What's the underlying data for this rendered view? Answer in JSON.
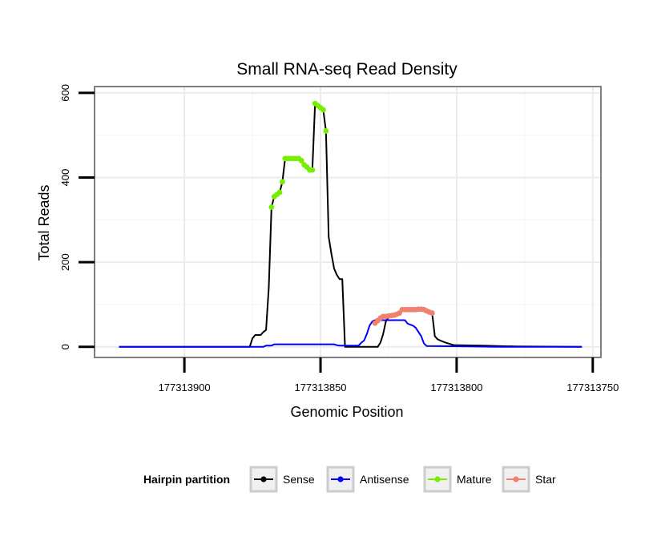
{
  "chart_data": {
    "type": "line",
    "title": "Small RNA-seq Read Density",
    "xlabel": "Genomic Position",
    "ylabel": "Total Reads",
    "x_reversed": true,
    "xlim": [
      177313933,
      177313747
    ],
    "ylim": [
      -25,
      615
    ],
    "x_ticks": [
      177313900,
      177313850,
      177313800,
      177313750
    ],
    "x_tick_labels": [
      "177313900",
      "177313850",
      "177313800",
      "177313750"
    ],
    "y_ticks": [
      0,
      200,
      400,
      600
    ],
    "y_tick_labels": [
      "0",
      "200",
      "400",
      "600"
    ],
    "grid": true,
    "legend": {
      "title": "Hairpin partition",
      "position": "bottom",
      "entries": [
        "Sense",
        "Antisense",
        "Mature",
        "Star"
      ]
    },
    "series": [
      {
        "name": "Sense",
        "color": "#000000",
        "kind": "line",
        "points": [
          [
            177313924,
            0
          ],
          [
            177313876,
            0
          ],
          [
            177313875,
            20
          ],
          [
            177313874,
            28
          ],
          [
            177313872,
            28
          ],
          [
            177313871,
            35
          ],
          [
            177313870,
            40
          ],
          [
            177313869,
            140
          ],
          [
            177313868,
            330
          ],
          [
            177313867,
            355
          ],
          [
            177313866,
            360
          ],
          [
            177313865,
            365
          ],
          [
            177313864,
            390
          ],
          [
            177313863,
            445
          ],
          [
            177313862,
            445
          ],
          [
            177313858,
            445
          ],
          [
            177313857,
            440
          ],
          [
            177313856,
            430
          ],
          [
            177313855,
            425
          ],
          [
            177313854,
            418
          ],
          [
            177313853,
            418
          ],
          [
            177313852,
            575
          ],
          [
            177313851,
            570
          ],
          [
            177313850,
            565
          ],
          [
            177313849,
            560
          ],
          [
            177313848,
            510
          ],
          [
            177313847,
            260
          ],
          [
            177313846,
            220
          ],
          [
            177313845,
            185
          ],
          [
            177313844,
            170
          ],
          [
            177313843,
            160
          ],
          [
            177313842,
            160
          ],
          [
            177313841,
            0
          ],
          [
            177313829,
            0
          ],
          [
            177313828,
            10
          ],
          [
            177313827,
            30
          ],
          [
            177313826,
            60
          ],
          [
            177313825,
            70
          ],
          [
            177313824,
            72
          ],
          [
            177313823,
            75
          ],
          [
            177313822,
            77
          ],
          [
            177313821,
            80
          ],
          [
            177313820,
            88
          ],
          [
            177313812,
            88
          ],
          [
            177313811,
            85
          ],
          [
            177313810,
            82
          ],
          [
            177313809,
            80
          ],
          [
            177313808,
            25
          ],
          [
            177313807,
            18
          ],
          [
            177313806,
            15
          ],
          [
            177313804,
            10
          ],
          [
            177313803,
            8
          ],
          [
            177313801,
            4
          ],
          [
            177313790,
            3
          ],
          [
            177313785,
            2
          ],
          [
            177313778,
            1
          ],
          [
            177313754,
            0
          ]
        ]
      },
      {
        "name": "Antisense",
        "color": "#0000ff",
        "kind": "line",
        "points": [
          [
            177313924,
            0
          ],
          [
            177313871,
            0
          ],
          [
            177313870,
            3
          ],
          [
            177313868,
            3
          ],
          [
            177313867,
            6
          ],
          [
            177313845,
            6
          ],
          [
            177313844,
            4
          ],
          [
            177313843,
            3
          ],
          [
            177313836,
            3
          ],
          [
            177313835,
            10
          ],
          [
            177313834,
            15
          ],
          [
            177313833,
            30
          ],
          [
            177313832,
            50
          ],
          [
            177313831,
            60
          ],
          [
            177313830,
            63
          ],
          [
            177313819,
            63
          ],
          [
            177313818,
            55
          ],
          [
            177313816,
            50
          ],
          [
            177313815,
            45
          ],
          [
            177313814,
            35
          ],
          [
            177313813,
            25
          ],
          [
            177313812,
            8
          ],
          [
            177313811,
            2
          ],
          [
            177313795,
            1
          ],
          [
            177313785,
            0
          ],
          [
            177313754,
            0
          ]
        ]
      },
      {
        "name": "Mature",
        "color": "#76ee00",
        "kind": "points",
        "points": [
          [
            177313868,
            330
          ],
          [
            177313867,
            355
          ],
          [
            177313866,
            360
          ],
          [
            177313865,
            365
          ],
          [
            177313864,
            390
          ],
          [
            177313863,
            445
          ],
          [
            177313862,
            445
          ],
          [
            177313861,
            445
          ],
          [
            177313860,
            445
          ],
          [
            177313859,
            445
          ],
          [
            177313858,
            445
          ],
          [
            177313857,
            440
          ],
          [
            177313856,
            430
          ],
          [
            177313855,
            425
          ],
          [
            177313854,
            418
          ],
          [
            177313853,
            418
          ],
          [
            177313852,
            575
          ],
          [
            177313851,
            570
          ],
          [
            177313850,
            565
          ],
          [
            177313849,
            560
          ],
          [
            177313848,
            510
          ]
        ]
      },
      {
        "name": "Star",
        "color": "#f08070",
        "kind": "points",
        "points": [
          [
            177313830,
            56
          ],
          [
            177313829,
            62
          ],
          [
            177313828,
            68
          ],
          [
            177313827,
            72
          ],
          [
            177313826,
            72
          ],
          [
            177313825,
            73
          ],
          [
            177313824,
            74
          ],
          [
            177313823,
            75
          ],
          [
            177313822,
            77
          ],
          [
            177313821,
            80
          ],
          [
            177313820,
            88
          ],
          [
            177313819,
            88
          ],
          [
            177313818,
            88
          ],
          [
            177313817,
            88
          ],
          [
            177313816,
            88
          ],
          [
            177313815,
            88
          ],
          [
            177313814,
            89
          ],
          [
            177313813,
            89
          ],
          [
            177313812,
            88
          ],
          [
            177313811,
            85
          ],
          [
            177313810,
            82
          ],
          [
            177313809,
            80
          ]
        ]
      }
    ]
  }
}
